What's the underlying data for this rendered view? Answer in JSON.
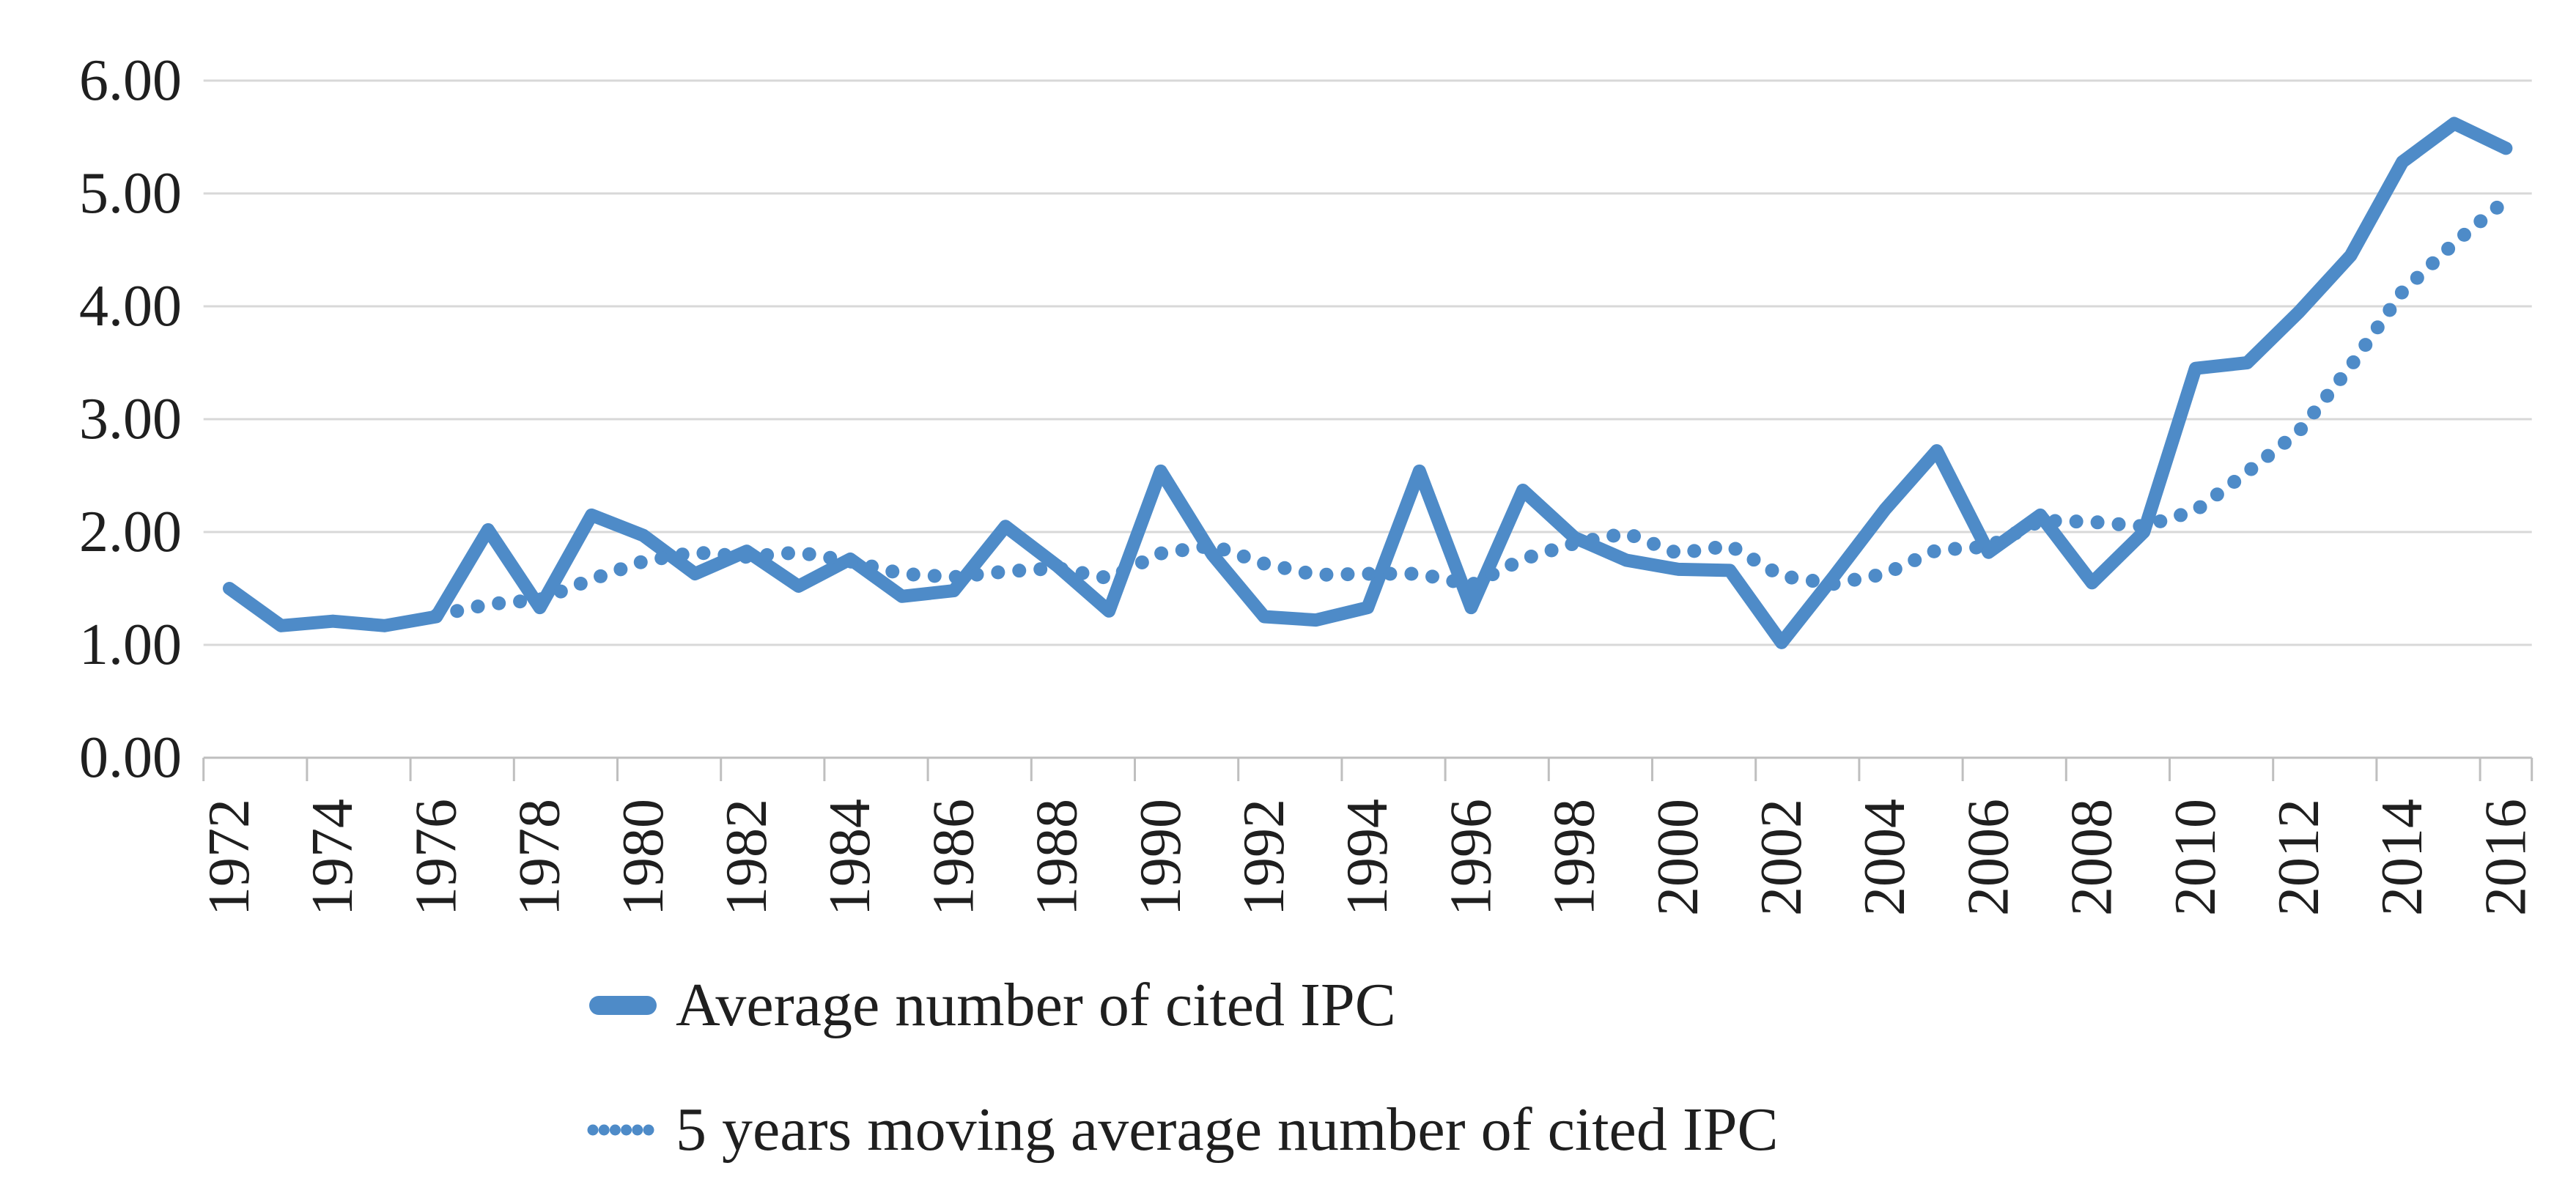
{
  "chart_data": {
    "type": "line",
    "title": "",
    "xlabel": "",
    "ylabel": "",
    "x": [
      1972,
      1973,
      1974,
      1975,
      1976,
      1977,
      1978,
      1979,
      1980,
      1981,
      1982,
      1983,
      1984,
      1985,
      1986,
      1987,
      1988,
      1989,
      1990,
      1991,
      1992,
      1993,
      1994,
      1995,
      1996,
      1997,
      1998,
      1999,
      2000,
      2001,
      2002,
      2003,
      2004,
      2005,
      2006,
      2007,
      2008,
      2009,
      2010,
      2011,
      2012,
      2013,
      2014,
      2015,
      2016
    ],
    "x_tick_labels": [
      "1972",
      "1974",
      "1976",
      "1978",
      "1980",
      "1982",
      "1984",
      "1986",
      "1988",
      "1990",
      "1992",
      "1994",
      "1996",
      "1998",
      "2000",
      "2002",
      "2004",
      "2006",
      "2008",
      "2010",
      "2012",
      "2014",
      "2016"
    ],
    "y_tick_labels": [
      "0.00",
      "1.00",
      "2.00",
      "3.00",
      "4.00",
      "5.00",
      "6.00"
    ],
    "ylim": [
      0,
      6
    ],
    "grid": "horizontal",
    "legend_position": "bottom-left",
    "series": [
      {
        "name": "Average number of cited IPC",
        "style": "solid",
        "color": "#4E8BC8",
        "start_year": 1972,
        "values": [
          1.5,
          1.17,
          1.21,
          1.17,
          1.25,
          2.02,
          1.33,
          2.15,
          1.97,
          1.63,
          1.83,
          1.52,
          1.76,
          1.43,
          1.48,
          2.05,
          1.7,
          1.3,
          2.54,
          1.8,
          1.25,
          1.22,
          1.33,
          2.54,
          1.33,
          2.37,
          1.95,
          1.75,
          1.67,
          1.66,
          1.02,
          1.6,
          2.2,
          2.72,
          1.82,
          2.15,
          1.55,
          2.0,
          3.45,
          3.5,
          3.95,
          4.45,
          5.28,
          5.62,
          5.4
        ]
      },
      {
        "name": "5 years moving average number of cited IPC",
        "style": "dotted",
        "color": "#4E8BC8",
        "start_year": 1976,
        "values": [
          1.26,
          1.36,
          1.4,
          1.58,
          1.74,
          1.82,
          1.78,
          1.82,
          1.74,
          1.63,
          1.6,
          1.65,
          1.68,
          1.59,
          1.81,
          1.88,
          1.72,
          1.62,
          1.63,
          1.63,
          1.53,
          1.76,
          1.9,
          1.99,
          1.81,
          1.88,
          1.61,
          1.54,
          1.63,
          1.84,
          1.87,
          2.1,
          2.09,
          2.05,
          2.19,
          2.53,
          2.89,
          3.47,
          4.13,
          4.56,
          4.94
        ]
      }
    ]
  },
  "legend": {
    "items": [
      {
        "label": "Average number of cited IPC",
        "marker": "solid-line"
      },
      {
        "label": "5 years moving average number of cited IPC",
        "marker": "dotted-line"
      }
    ]
  },
  "colors": {
    "series_blue": "#4E8BC8",
    "gridline": "#D8D8D8",
    "axis_line": "#BFBFBF",
    "label_text": "#1f1f1f",
    "background": "#ffffff"
  }
}
